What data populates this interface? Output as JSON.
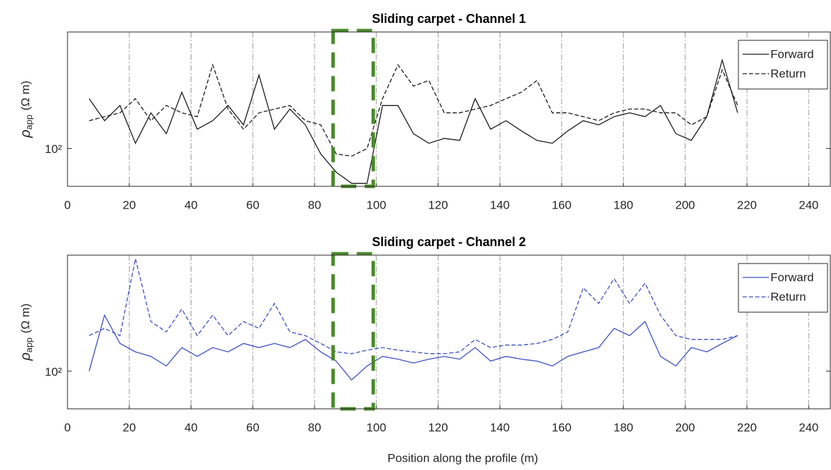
{
  "chart_data": [
    {
      "type": "line",
      "title": "Sliding carpet - Channel 1",
      "y_label_symbol": "ρ",
      "y_label_sub": "app",
      "y_label_unit": "(Ω m)",
      "x": [
        7,
        12,
        17,
        22,
        27,
        32,
        37,
        42,
        47,
        52,
        57,
        62,
        67,
        72,
        77,
        82,
        87,
        92,
        97,
        102,
        107,
        112,
        117,
        122,
        127,
        132,
        137,
        142,
        147,
        152,
        157,
        162,
        167,
        172,
        177,
        182,
        187,
        192,
        197,
        202,
        207,
        212,
        217
      ],
      "series": [
        {
          "name": "Forward",
          "color": "#1a1a1a",
          "dash": false,
          "values": [
            160,
            130,
            150,
            105,
            140,
            115,
            170,
            120,
            130,
            150,
            125,
            200,
            120,
            145,
            125,
            95,
            80,
            72,
            72,
            150,
            150,
            115,
            105,
            110,
            108,
            160,
            120,
            130,
            118,
            108,
            105,
            118,
            130,
            125,
            135,
            140,
            135,
            150,
            115,
            108,
            135,
            230,
            140
          ]
        },
        {
          "name": "Return",
          "color": "#1a1a1a",
          "dash": true,
          "values": [
            130,
            135,
            140,
            160,
            130,
            150,
            140,
            135,
            220,
            145,
            120,
            140,
            145,
            150,
            130,
            125,
            95,
            93,
            100,
            160,
            220,
            180,
            190,
            140,
            140,
            145,
            150,
            160,
            170,
            190,
            140,
            140,
            135,
            130,
            140,
            145,
            145,
            140,
            140,
            125,
            135,
            210,
            150
          ]
        }
      ],
      "xlim": [
        0,
        247
      ],
      "xticks": [
        0,
        20,
        40,
        60,
        80,
        100,
        120,
        140,
        160,
        180,
        200,
        220,
        240
      ],
      "ylim": [
        70,
        300
      ],
      "yticks": [
        {
          "value": 100,
          "label": "10²"
        }
      ],
      "log_y": true,
      "grid_x": true,
      "legend": "northeast",
      "highlight_x": [
        86,
        99
      ],
      "highlight_color": "#4a8a2a"
    },
    {
      "type": "line",
      "title": "Sliding carpet - Channel 2",
      "y_label_symbol": "ρ",
      "y_label_sub": "app",
      "y_label_unit": "(Ω m)",
      "x_label": "Position along the profile (m)",
      "x": [
        7,
        12,
        17,
        22,
        27,
        32,
        37,
        42,
        47,
        52,
        57,
        62,
        67,
        72,
        77,
        82,
        87,
        92,
        97,
        102,
        107,
        112,
        117,
        122,
        127,
        132,
        137,
        142,
        147,
        152,
        157,
        162,
        167,
        172,
        177,
        182,
        187,
        192,
        197,
        202,
        207,
        212,
        217
      ],
      "series": [
        {
          "name": "Forward",
          "color": "#3b4fc4",
          "dash": false,
          "values": [
            100,
            170,
            130,
            120,
            115,
            105,
            125,
            115,
            125,
            120,
            130,
            125,
            130,
            125,
            135,
            120,
            110,
            92,
            105,
            115,
            112,
            108,
            112,
            115,
            112,
            125,
            110,
            115,
            112,
            110,
            105,
            115,
            120,
            125,
            150,
            140,
            160,
            115,
            105,
            125,
            120,
            130,
            140
          ]
        },
        {
          "name": "Return",
          "color": "#3b4fc4",
          "dash": true,
          "values": [
            140,
            150,
            140,
            290,
            160,
            145,
            180,
            140,
            170,
            140,
            160,
            150,
            190,
            145,
            140,
            130,
            120,
            118,
            122,
            125,
            122,
            120,
            118,
            118,
            120,
            135,
            125,
            128,
            128,
            130,
            135,
            145,
            220,
            190,
            240,
            190,
            230,
            170,
            140,
            135,
            135,
            135,
            140
          ]
        }
      ],
      "xlim": [
        0,
        247
      ],
      "xticks": [
        0,
        20,
        40,
        60,
        80,
        100,
        120,
        140,
        160,
        180,
        200,
        220,
        240
      ],
      "ylim": [
        70,
        300
      ],
      "yticks": [
        {
          "value": 100,
          "label": "10²"
        }
      ],
      "log_y": true,
      "grid_x": true,
      "legend": "northeast",
      "highlight_x": [
        86,
        99
      ],
      "highlight_color": "#4a8a2a"
    }
  ]
}
